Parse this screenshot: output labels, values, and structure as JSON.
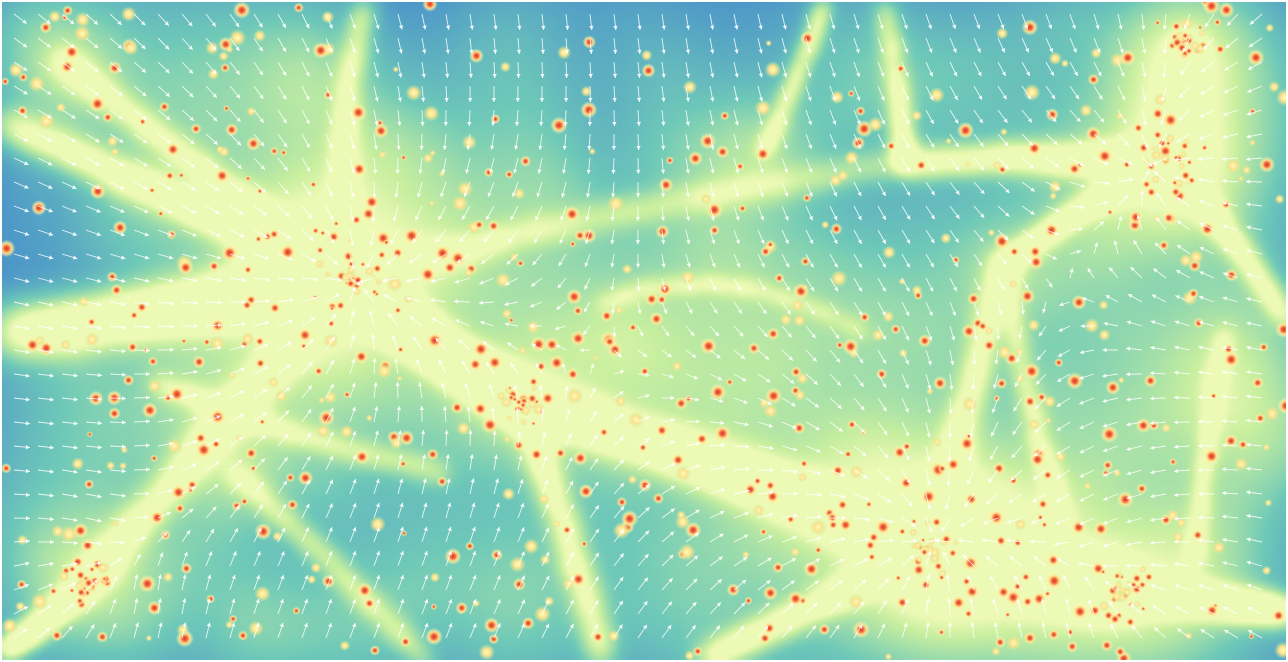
{
  "figure": {
    "subject": "cosmic-web-density-field-with-velocity-arrows",
    "colors": {
      "void": "#3f72b5",
      "low_density": "#4f9ac8",
      "filament": "#6fc9b8",
      "dense": "#c9ef9f",
      "very_dense": "#ffffc0",
      "halo_ring": "#fee08b",
      "halo_core": "#d73027",
      "velocity_arrow": "#ffffff",
      "border": "#ffffff"
    }
  }
}
